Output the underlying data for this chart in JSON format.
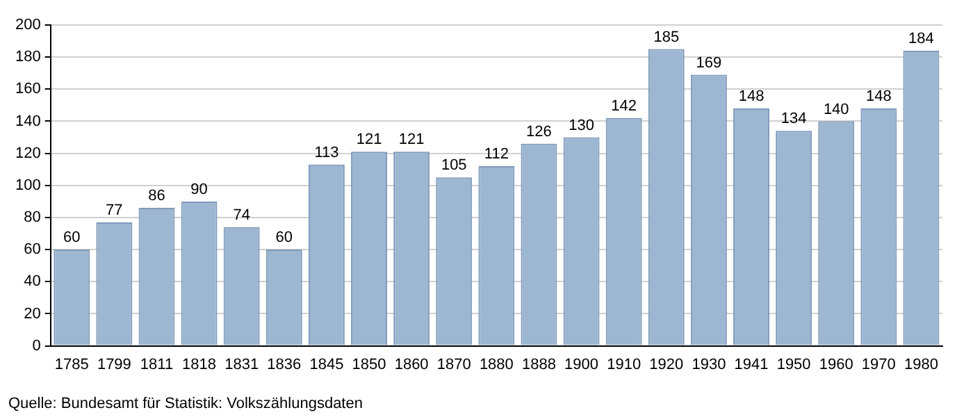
{
  "chart_data": {
    "type": "bar",
    "categories": [
      "1785",
      "1799",
      "1811",
      "1818",
      "1831",
      "1836",
      "1845",
      "1850",
      "1860",
      "1870",
      "1880",
      "1888",
      "1900",
      "1910",
      "1920",
      "1930",
      "1941",
      "1950",
      "1960",
      "1970",
      "1980"
    ],
    "values": [
      60,
      77,
      86,
      90,
      74,
      60,
      113,
      121,
      121,
      105,
      112,
      126,
      130,
      142,
      185,
      169,
      148,
      134,
      140,
      148,
      184
    ],
    "color": "#9db6d1",
    "ylim": [
      0,
      200
    ],
    "yticks": [
      0,
      20,
      40,
      60,
      80,
      100,
      120,
      140,
      160,
      180,
      200
    ],
    "grid": "y",
    "data_labels": true,
    "legend": false,
    "annotations": [
      "Quelle: Bundesamt für Statistik: Volkszählungsdaten"
    ]
  }
}
